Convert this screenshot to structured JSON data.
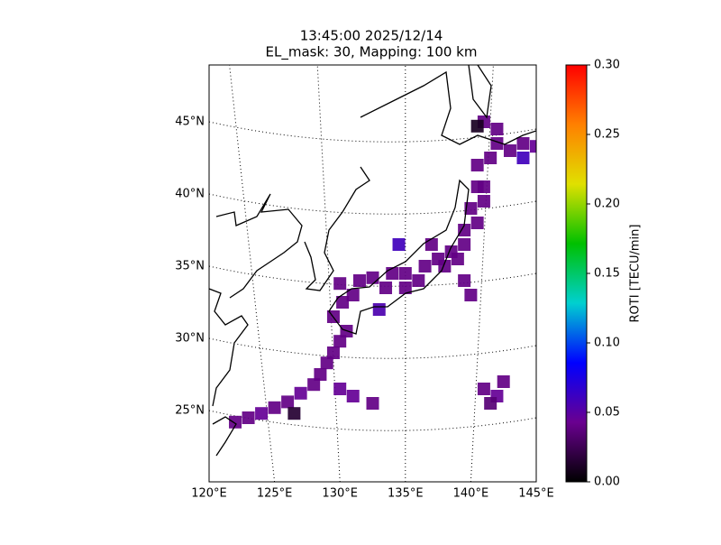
{
  "chart_data": {
    "type": "map-grid",
    "title": "13:45:00 2025/12/14",
    "subtitle": "EL_mask: 30, Mapping: 100 km",
    "xlim": [
      120,
      145
    ],
    "xticks": [
      {
        "value": 120,
        "label": "120°E"
      },
      {
        "value": 125,
        "label": "125°E"
      },
      {
        "value": 130,
        "label": "130°E"
      },
      {
        "value": 135,
        "label": "135°E"
      },
      {
        "value": 140,
        "label": "140°E"
      },
      {
        "value": 145,
        "label": "145°E"
      }
    ],
    "yticks": [
      {
        "value": 25,
        "label": "25°N"
      },
      {
        "value": 30,
        "label": "30°N"
      },
      {
        "value": 35,
        "label": "35°N"
      },
      {
        "value": 40,
        "label": "40°N"
      },
      {
        "value": 45,
        "label": "45°N"
      }
    ],
    "grid": true,
    "colorbar": {
      "label": "ROTI [TECU/min]",
      "lim": [
        0,
        0.3
      ],
      "ticks": [
        {
          "value": 0,
          "label": "0.00"
        },
        {
          "value": 0.05,
          "label": "0.05"
        },
        {
          "value": 0.1,
          "label": "0.10"
        },
        {
          "value": 0.15,
          "label": "0.15"
        },
        {
          "value": 0.2,
          "label": "0.20"
        },
        {
          "value": 0.25,
          "label": "0.25"
        },
        {
          "value": 0.3,
          "label": "0.30"
        }
      ],
      "colors": [
        "#000000",
        "#6a0090",
        "#0000ff",
        "#00d0d0",
        "#00c000",
        "#e0e000",
        "#ff8000",
        "#ff0000"
      ]
    },
    "cells": {
      "lon": [
        122,
        123,
        124,
        125,
        126,
        127,
        128,
        128.5,
        129,
        129.5,
        130,
        130.5,
        126.5,
        130,
        131,
        132.5,
        129.5,
        130.2,
        131,
        130,
        131.5,
        132.5,
        133.5,
        134,
        135,
        135,
        136,
        133,
        136.5,
        137.5,
        138.5,
        137,
        138,
        139,
        139.5,
        139.5,
        140.5,
        140,
        141,
        140.5,
        141,
        134.5,
        139.5,
        140,
        140.5,
        141.5,
        142,
        143,
        144,
        142,
        141,
        144,
        145,
        140.5,
        141,
        142,
        142.5,
        141.5
      ],
      "lat": [
        24.2,
        24.5,
        24.8,
        25.2,
        25.6,
        26.2,
        26.8,
        27.5,
        28.3,
        29,
        29.8,
        30.5,
        24.8,
        26.5,
        26,
        25.5,
        31.5,
        32.5,
        33,
        33.8,
        34,
        34.2,
        33.5,
        34.5,
        34.5,
        33.5,
        34,
        32,
        35,
        35.5,
        36,
        36.5,
        35,
        35.5,
        36.5,
        37.5,
        38,
        39,
        39.5,
        40.5,
        40.5,
        36.5,
        34,
        33,
        42,
        42.5,
        43.5,
        43,
        43.5,
        44.5,
        45,
        42.5,
        43.3,
        44.7,
        26.5,
        26,
        27,
        25.5
      ],
      "values": [
        0.04,
        0.04,
        0.045,
        0.04,
        0.04,
        0.045,
        0.04,
        0.04,
        0.04,
        0.04,
        0.04,
        0.04,
        0.015,
        0.045,
        0.045,
        0.04,
        0.04,
        0.04,
        0.04,
        0.04,
        0.04,
        0.04,
        0.04,
        0.04,
        0.04,
        0.04,
        0.04,
        0.055,
        0.04,
        0.04,
        0.04,
        0.04,
        0.04,
        0.04,
        0.04,
        0.04,
        0.04,
        0.04,
        0.04,
        0.04,
        0.04,
        0.06,
        0.04,
        0.04,
        0.04,
        0.04,
        0.04,
        0.04,
        0.04,
        0.04,
        0.04,
        0.06,
        0.045,
        0.01,
        0.04,
        0.045,
        0.04,
        0.035
      ]
    }
  }
}
